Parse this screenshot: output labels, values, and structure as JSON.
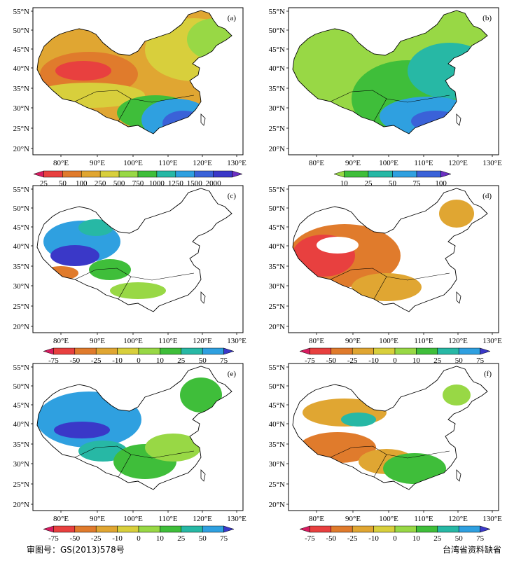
{
  "labels": {
    "lat": [
      "55°N",
      "50°N",
      "45°N",
      "40°N",
      "35°N",
      "30°N",
      "25°N",
      "20°N"
    ],
    "lon": [
      "80°E",
      "90°E",
      "100°E",
      "110°E",
      "120°E",
      "130°E"
    ]
  },
  "scales": {
    "precip": {
      "ticks": [
        "25",
        "50",
        "100",
        "250",
        "500",
        "750",
        "1000",
        "1250",
        "1500",
        "2000"
      ],
      "colors": [
        "#d81b60",
        "#e8403f",
        "#e07b2c",
        "#e0a632",
        "#d8cf3c",
        "#98d845",
        "#3fbe3a",
        "#27b8a5",
        "#2fa0e0",
        "#3a62d8",
        "#3a38c8",
        "#6b2fc2"
      ]
    },
    "pct": {
      "ticks": [
        "10",
        "25",
        "50",
        "75",
        "100"
      ],
      "colors": [
        "#98d845",
        "#3fbe3a",
        "#27b8a5",
        "#2fa0e0",
        "#3a62d8",
        "#6b2fc2"
      ]
    },
    "change": {
      "ticks": [
        "-75",
        "-50",
        "-25",
        "-10",
        "0",
        "10",
        "25",
        "50",
        "75"
      ],
      "colors": [
        "#d81b60",
        "#e8403f",
        "#e07b2c",
        "#e0a632",
        "#d8cf3c",
        "#98d845",
        "#3fbe3a",
        "#27b8a5",
        "#2fa0e0",
        "#3a38c8"
      ]
    }
  },
  "panels": [
    {
      "id": "a",
      "label": "(a)",
      "scale": "precip"
    },
    {
      "id": "b",
      "label": "(b)",
      "scale": "pct"
    },
    {
      "id": "c",
      "label": "(c)",
      "scale": "change"
    },
    {
      "id": "d",
      "label": "(d)",
      "scale": "change"
    },
    {
      "id": "e",
      "label": "(e)",
      "scale": "change"
    },
    {
      "id": "f",
      "label": "(f)",
      "scale": "change"
    }
  ],
  "footer": {
    "approval": "审图号：GS(2013)578号",
    "note": "台湾省资料缺省"
  }
}
